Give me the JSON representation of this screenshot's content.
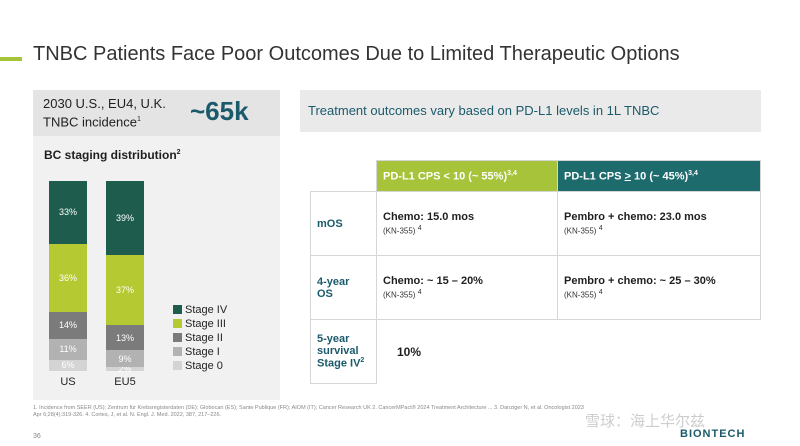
{
  "title": "TNBC Patients Face Poor Outcomes Due to Limited Therapeutic Options",
  "incidence": {
    "label": "2030 U.S., EU4, U.K. TNBC incidence",
    "sup": "1",
    "value": "~65k"
  },
  "staging_title": "BC staging distribution",
  "staging_sup": "2",
  "chart_data": {
    "type": "bar",
    "stacked": true,
    "title": "BC staging distribution",
    "categories": [
      "US",
      "EU5"
    ],
    "series": [
      {
        "name": "Stage 0",
        "values": [
          6,
          2
        ],
        "labels": [
          "6%",
          "2%"
        ],
        "color": "#d4d4d4"
      },
      {
        "name": "Stage I",
        "values": [
          11,
          9
        ],
        "labels": [
          "11%",
          "9%"
        ],
        "color": "#b2b2b2"
      },
      {
        "name": "Stage II",
        "values": [
          14,
          13
        ],
        "labels": [
          "14%",
          "13%"
        ],
        "color": "#7b7b7b"
      },
      {
        "name": "Stage III",
        "values": [
          36,
          37
        ],
        "labels": [
          "36%",
          "37%"
        ],
        "color": "#b5c932"
      },
      {
        "name": "Stage IV",
        "values": [
          33,
          39
        ],
        "labels": [
          "33%",
          "39%"
        ],
        "color": "#1e5c4d"
      }
    ],
    "legend_order": [
      "Stage IV",
      "Stage III",
      "Stage II",
      "Stage I",
      "Stage 0"
    ],
    "ylim": [
      0,
      100
    ]
  },
  "right_header": "Treatment outcomes vary based on PD-L1 levels in 1L TNBC",
  "table": {
    "col1": {
      "label": "PD-L1 CPS < 10  (~ 55%)",
      "sup": "3,4"
    },
    "col2": {
      "pre": "PD-L1 CPS ",
      "ge": ">",
      "post": " 10 (~ 45%)",
      "sup": "3,4"
    },
    "rows": [
      {
        "label": "mOS",
        "c1": "Chemo: 15.0 mos",
        "c1sub": "(KN-355)",
        "c1sup": "4",
        "c2": "Pembro + chemo: 23.0 mos",
        "c2sub": "(KN-355)",
        "c2sup": "4"
      },
      {
        "label1": "4-year",
        "label2": "OS",
        "c1": "Chemo: ~ 15 – 20%",
        "c1sub": "(KN-355)",
        "c1sup": "4",
        "c2": "Pembro + chemo: ~ 25 – 30%",
        "c2sub": "(KN-355)",
        "c2sup": "4"
      },
      {
        "label1": "5-year",
        "label2": "survival",
        "label3": "Stage IV",
        "label3sup": "2",
        "value": "10%"
      }
    ]
  },
  "footnote": "1. Incidence from SEER (US); Zentrum für Krebsregisterdaten (DE); Globocan (ES); Sante Publique (FR); AIOM (IT); Cancer Research UK  2. CancerMPact® 2024 Treatment Architecture ... 3. Danziger N, et al. Oncologist 2023 Apr 6;28(4):319-326. 4. Cortes, J, et al. N. Engl. J. Med. 2022, 387, 217–226.",
  "page_number": "36",
  "logo": "BIONTECH",
  "watermark": "雪球：海上华尔兹"
}
